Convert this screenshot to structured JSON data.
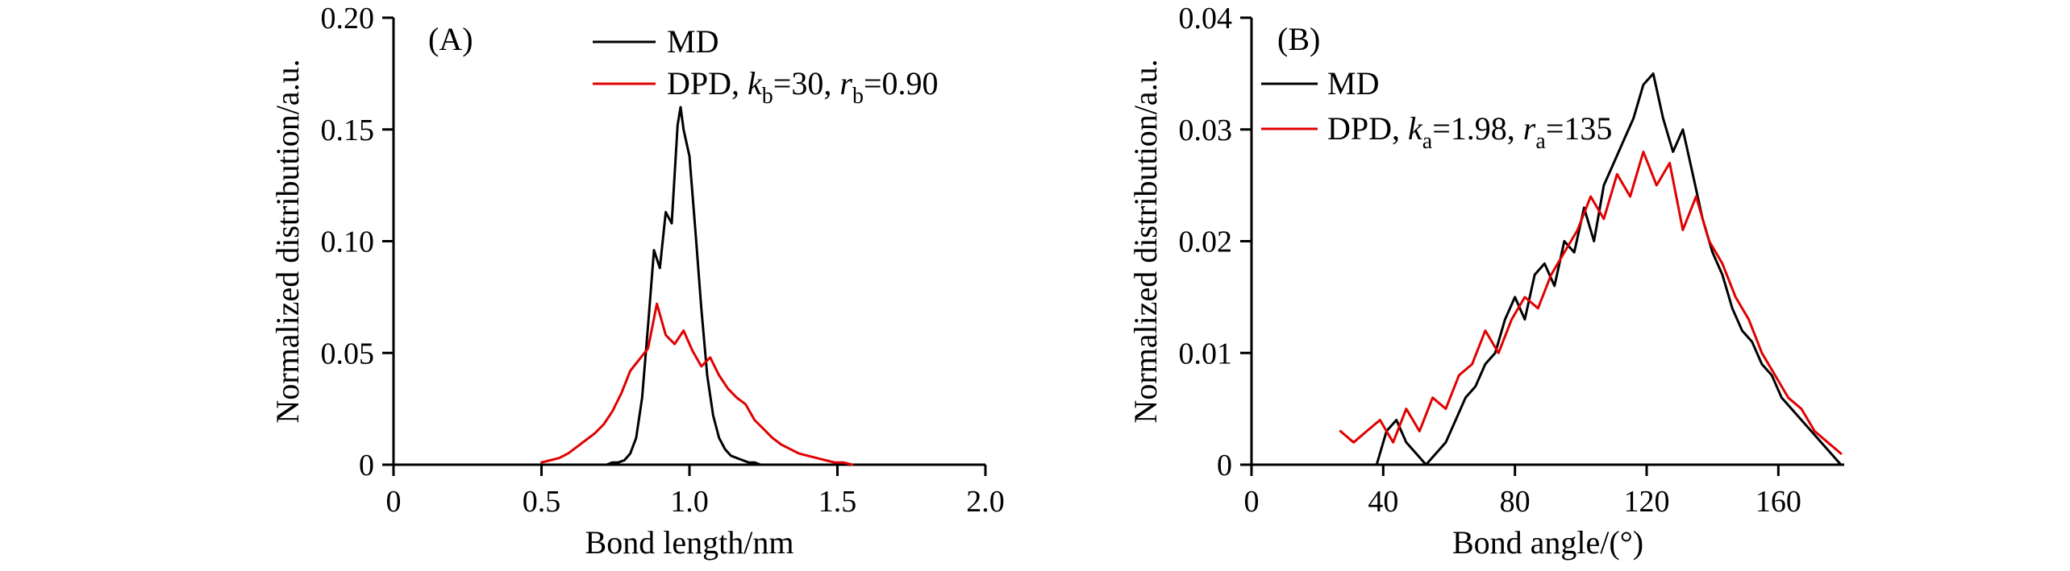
{
  "figure": {
    "background": "#ffffff",
    "axis_color": "#000000"
  },
  "chart_data": [
    {
      "type": "line",
      "panel_label": "(A)",
      "title": "",
      "xlabel": "Bond length/nm",
      "ylabel": "Normalized distribution/a.u.",
      "xlim": [
        0,
        2.0
      ],
      "ylim": [
        0,
        0.2
      ],
      "grid": false,
      "legend_position": "top-center",
      "xticks": {
        "values": [
          0,
          0.5,
          1.0,
          1.5,
          2.0
        ],
        "labels": [
          "0",
          "0.5",
          "1.0",
          "1.5",
          "2.0"
        ]
      },
      "yticks": {
        "values": [
          0,
          0.05,
          0.1,
          0.15,
          0.2
        ],
        "labels": [
          "0",
          "0.05",
          "0.10",
          "0.15",
          "0.20"
        ]
      },
      "series": [
        {
          "name": "MD",
          "color": "#000000",
          "label_text": "MD",
          "label_segments": [
            {
              "t": "MD"
            }
          ],
          "x": [
            0.72,
            0.74,
            0.76,
            0.78,
            0.8,
            0.82,
            0.84,
            0.86,
            0.88,
            0.9,
            0.92,
            0.94,
            0.96,
            0.97,
            0.98,
            1.0,
            1.02,
            1.04,
            1.06,
            1.08,
            1.1,
            1.12,
            1.14,
            1.16,
            1.18,
            1.2,
            1.22,
            1.24
          ],
          "y": [
            0,
            0.001,
            0.001,
            0.002,
            0.005,
            0.012,
            0.03,
            0.062,
            0.096,
            0.088,
            0.113,
            0.108,
            0.152,
            0.16,
            0.15,
            0.138,
            0.105,
            0.07,
            0.04,
            0.022,
            0.012,
            0.007,
            0.004,
            0.003,
            0.002,
            0.001,
            0.001,
            0
          ]
        },
        {
          "name": "DPD",
          "color": "#e00000",
          "label_text": "DPD, kb=30, rb=0.90",
          "label_segments": [
            {
              "t": "DPD, "
            },
            {
              "t": "k",
              "i": true
            },
            {
              "t": "b",
              "sub": true
            },
            {
              "t": "=30, "
            },
            {
              "t": "r",
              "i": true
            },
            {
              "t": "b",
              "sub": true
            },
            {
              "t": "=0.90"
            }
          ],
          "x": [
            0.5,
            0.53,
            0.56,
            0.59,
            0.62,
            0.65,
            0.68,
            0.71,
            0.74,
            0.77,
            0.8,
            0.83,
            0.86,
            0.89,
            0.92,
            0.95,
            0.98,
            1.01,
            1.04,
            1.07,
            1.1,
            1.13,
            1.16,
            1.19,
            1.22,
            1.25,
            1.28,
            1.31,
            1.34,
            1.37,
            1.4,
            1.43,
            1.46,
            1.49,
            1.52,
            1.55
          ],
          "y": [
            0.001,
            0.002,
            0.003,
            0.005,
            0.008,
            0.011,
            0.014,
            0.018,
            0.024,
            0.032,
            0.042,
            0.047,
            0.052,
            0.072,
            0.058,
            0.054,
            0.06,
            0.051,
            0.044,
            0.048,
            0.04,
            0.034,
            0.03,
            0.027,
            0.02,
            0.016,
            0.012,
            0.009,
            0.007,
            0.005,
            0.004,
            0.003,
            0.002,
            0.001,
            0.001,
            0
          ]
        }
      ]
    },
    {
      "type": "line",
      "panel_label": "(B)",
      "title": "",
      "xlabel": "Bond angle/(°)",
      "ylabel": "Normalized distribution/a.u.",
      "xlim": [
        0,
        180
      ],
      "ylim": [
        0,
        0.04
      ],
      "grid": false,
      "legend_position": "upper-left",
      "xticks": {
        "values": [
          0,
          40,
          80,
          120,
          160
        ],
        "labels": [
          "0",
          "40",
          "80",
          "120",
          "160"
        ]
      },
      "yticks": {
        "values": [
          0,
          0.01,
          0.02,
          0.03,
          0.04
        ],
        "labels": [
          "0",
          "0.01",
          "0.02",
          "0.03",
          "0.04"
        ]
      },
      "series": [
        {
          "name": "MD",
          "color": "#000000",
          "label_text": "MD",
          "label_segments": [
            {
              "t": "MD"
            }
          ],
          "x": [
            38,
            41,
            44,
            47,
            50,
            53,
            56,
            59,
            62,
            65,
            68,
            71,
            74,
            77,
            80,
            83,
            86,
            89,
            92,
            95,
            98,
            101,
            104,
            107,
            110,
            113,
            116,
            119,
            122,
            125,
            128,
            131,
            134,
            137,
            140,
            143,
            146,
            149,
            152,
            155,
            158,
            161,
            164,
            167,
            170,
            173,
            176,
            179
          ],
          "y": [
            0.0,
            0.003,
            0.004,
            0.002,
            0.001,
            0.0,
            0.001,
            0.002,
            0.004,
            0.006,
            0.007,
            0.009,
            0.01,
            0.013,
            0.015,
            0.013,
            0.017,
            0.018,
            0.016,
            0.02,
            0.019,
            0.023,
            0.02,
            0.025,
            0.027,
            0.029,
            0.031,
            0.034,
            0.035,
            0.031,
            0.028,
            0.03,
            0.026,
            0.022,
            0.019,
            0.017,
            0.014,
            0.012,
            0.011,
            0.009,
            0.008,
            0.006,
            0.005,
            0.004,
            0.003,
            0.002,
            0.001,
            0.0
          ]
        },
        {
          "name": "DPD",
          "color": "#e00000",
          "label_text": "DPD, ka=1.98, ra=135",
          "label_segments": [
            {
              "t": "DPD, "
            },
            {
              "t": "k",
              "i": true
            },
            {
              "t": "a",
              "sub": true
            },
            {
              "t": "=1.98, "
            },
            {
              "t": "r",
              "i": true
            },
            {
              "t": "a",
              "sub": true
            },
            {
              "t": "=135"
            }
          ],
          "x": [
            27,
            31,
            35,
            39,
            43,
            47,
            51,
            55,
            59,
            63,
            67,
            71,
            75,
            79,
            83,
            87,
            91,
            95,
            99,
            103,
            107,
            111,
            115,
            119,
            123,
            127,
            131,
            135,
            139,
            143,
            147,
            151,
            155,
            159,
            163,
            167,
            171,
            175,
            179
          ],
          "y": [
            0.003,
            0.002,
            0.003,
            0.004,
            0.002,
            0.005,
            0.003,
            0.006,
            0.005,
            0.008,
            0.009,
            0.012,
            0.01,
            0.013,
            0.015,
            0.014,
            0.017,
            0.019,
            0.021,
            0.024,
            0.022,
            0.026,
            0.024,
            0.028,
            0.025,
            0.027,
            0.021,
            0.024,
            0.02,
            0.018,
            0.015,
            0.013,
            0.01,
            0.008,
            0.006,
            0.005,
            0.003,
            0.002,
            0.001
          ]
        }
      ]
    }
  ]
}
